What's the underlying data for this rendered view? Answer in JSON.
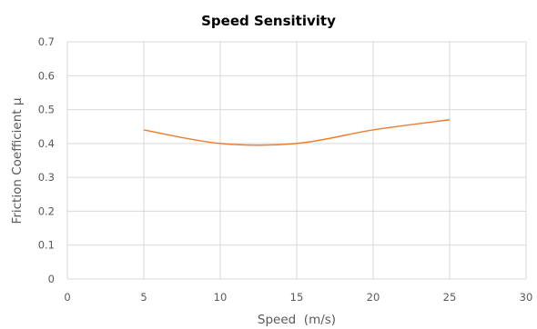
{
  "chart_data": {
    "type": "line",
    "title": "Speed Sensitivity",
    "xlabel": "Speed  (m/s)",
    "ylabel": "Friction Coefficient μ",
    "xlim": [
      0,
      30
    ],
    "ylim": [
      0,
      0.7
    ],
    "x_ticks": [
      "0",
      "5",
      "10",
      "15",
      "20",
      "25",
      "30"
    ],
    "y_ticks": [
      "0",
      "0.1",
      "0.2",
      "0.3",
      "0.4",
      "0.5",
      "0.6",
      "0.7"
    ],
    "grid": "vertical and horizontal",
    "smooth": true,
    "series": [
      {
        "color": "#ED7D31",
        "x": [
          5,
          10,
          15,
          20,
          25
        ],
        "y": [
          0.44,
          0.4,
          0.4,
          0.44,
          0.47
        ]
      }
    ]
  }
}
